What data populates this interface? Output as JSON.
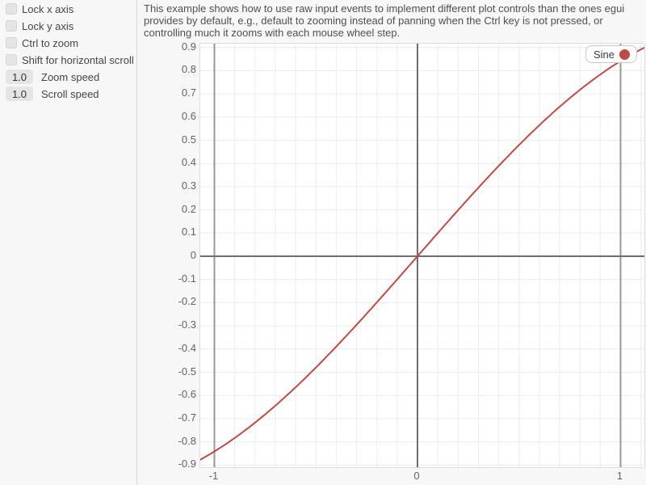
{
  "sidebar": {
    "controls": [
      {
        "type": "checkbox",
        "label": "Lock x axis",
        "checked": false
      },
      {
        "type": "checkbox",
        "label": "Lock y axis",
        "checked": false
      },
      {
        "type": "checkbox",
        "label": "Ctrl to zoom",
        "checked": false
      },
      {
        "type": "checkbox",
        "label": "Shift for horizontal scroll",
        "checked": false
      },
      {
        "type": "drag_value",
        "value": "1.0",
        "label": "Zoom speed"
      },
      {
        "type": "drag_value",
        "value": "1.0",
        "label": "Scroll speed"
      }
    ]
  },
  "main": {
    "description_lines": [
      "This example shows how to use raw input events to implement different plot controls than the ones egui",
      "provides by default, e.g., default to zooming instead of panning when the Ctrl key is not pressed, or",
      "controlling much it zooms with each mouse wheel step."
    ]
  },
  "chart_data": {
    "type": "line",
    "title": "",
    "series": [
      {
        "name": "Sine",
        "function": "sin(x)",
        "color": "#be4b46",
        "points_sample": [
          [
            -1.0,
            -0.841
          ],
          [
            -0.8,
            -0.717
          ],
          [
            -0.6,
            -0.565
          ],
          [
            -0.4,
            -0.389
          ],
          [
            -0.2,
            -0.199
          ],
          [
            0.0,
            0.0
          ],
          [
            0.2,
            0.199
          ],
          [
            0.4,
            0.389
          ],
          [
            0.6,
            0.565
          ],
          [
            0.8,
            0.717
          ],
          [
            1.0,
            0.841
          ]
        ]
      }
    ],
    "x_ticks": [
      -1,
      0,
      1
    ],
    "y_ticks": [
      0.9,
      0.8,
      0.7,
      0.6,
      0.5,
      0.4,
      0.3,
      0.2,
      0.1,
      0,
      -0.1,
      -0.2,
      -0.3,
      -0.4,
      -0.5,
      -0.6,
      -0.7,
      -0.8,
      -0.9
    ],
    "x_visible_range": [
      -1.07,
      1.13
    ],
    "y_visible_range": [
      -0.92,
      0.92
    ],
    "grid_step": 0.1,
    "grid": true,
    "legend": {
      "position": "top-right",
      "entries": [
        "Sine"
      ]
    }
  },
  "colors": {
    "background": "#f7f7f7",
    "plot_background": "#ffffff",
    "grid_line": "#ececec",
    "unit_line": "#979797",
    "axis_line": "#6e6e6e",
    "series_red": "#be4b46",
    "widget_fill": "#e5e5e5",
    "text": "#4a4a4a",
    "tick_text": "#636363"
  }
}
